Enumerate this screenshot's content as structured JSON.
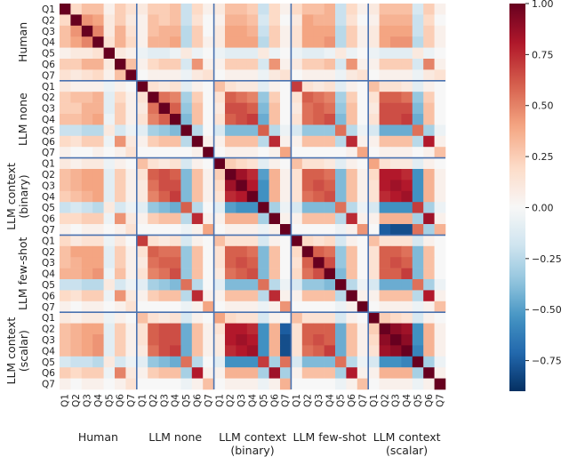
{
  "chart_data": {
    "type": "heatmap",
    "questions": [
      "Q1",
      "Q2",
      "Q3",
      "Q4",
      "Q5",
      "Q6",
      "Q7"
    ],
    "groups": [
      {
        "label_lines": [
          "Human"
        ]
      },
      {
        "label_lines": [
          "LLM none"
        ]
      },
      {
        "label_lines": [
          "LLM context",
          "(binary)"
        ]
      },
      {
        "label_lines": [
          "LLM few-shot"
        ]
      },
      {
        "label_lines": [
          "LLM context",
          "(scalar)"
        ]
      }
    ],
    "colorbar": {
      "vmin": -0.9,
      "vmax": 1.0,
      "ticks": [
        1.0,
        0.75,
        0.5,
        0.25,
        0.0,
        -0.25,
        -0.5,
        -0.75
      ],
      "tick_labels": [
        "1.00",
        "0.75",
        "0.50",
        "0.25",
        "0.00",
        "−0.25",
        "−0.50",
        "−0.75"
      ],
      "colormap": "RdBu_r"
    },
    "grid_line_color": "#4a72b0",
    "matrix": [
      [
        1.0,
        0.2,
        0.3,
        0.3,
        0.05,
        0.25,
        0.15,
        0.1,
        0.25,
        0.25,
        0.3,
        -0.2,
        0.2,
        0.05,
        0.1,
        0.3,
        0.3,
        0.25,
        -0.2,
        0.2,
        0.05,
        0.2,
        0.3,
        0.3,
        0.35,
        -0.2,
        0.2,
        0.05,
        0.1,
        0.3,
        0.3,
        0.3,
        -0.15,
        0.25,
        0.05
      ],
      [
        0.2,
        1.0,
        0.45,
        0.4,
        0.1,
        0.25,
        0.1,
        0.05,
        0.3,
        0.25,
        0.3,
        -0.2,
        0.15,
        0.0,
        0.05,
        0.35,
        0.35,
        0.3,
        -0.15,
        0.2,
        0.0,
        0.1,
        0.4,
        0.35,
        0.35,
        -0.2,
        0.15,
        0.0,
        0.05,
        0.35,
        0.35,
        0.35,
        -0.2,
        0.2,
        0.0
      ],
      [
        0.3,
        0.45,
        1.0,
        0.5,
        0.1,
        0.35,
        0.15,
        0.05,
        0.3,
        0.35,
        0.35,
        -0.25,
        0.25,
        0.0,
        0.1,
        0.4,
        0.4,
        0.35,
        -0.2,
        0.25,
        0.05,
        0.15,
        0.4,
        0.4,
        0.4,
        -0.25,
        0.25,
        0.05,
        0.1,
        0.4,
        0.4,
        0.4,
        -0.2,
        0.25,
        0.05
      ],
      [
        0.3,
        0.4,
        0.5,
        1.0,
        0.15,
        0.35,
        0.2,
        0.05,
        0.35,
        0.35,
        0.4,
        -0.25,
        0.25,
        0.05,
        0.1,
        0.4,
        0.4,
        0.4,
        -0.25,
        0.25,
        0.05,
        0.15,
        0.4,
        0.4,
        0.45,
        -0.25,
        0.25,
        0.05,
        0.1,
        0.4,
        0.45,
        0.45,
        -0.25,
        0.25,
        0.05
      ],
      [
        0.05,
        0.1,
        0.1,
        0.15,
        1.0,
        0.1,
        0.05,
        -0.05,
        -0.1,
        -0.1,
        -0.05,
        0.1,
        -0.05,
        0.0,
        -0.05,
        -0.1,
        -0.1,
        -0.1,
        0.1,
        -0.05,
        0.0,
        -0.05,
        -0.1,
        -0.1,
        -0.05,
        0.1,
        -0.05,
        0.0,
        -0.05,
        -0.1,
        -0.1,
        -0.1,
        0.1,
        -0.05,
        0.0
      ],
      [
        0.25,
        0.25,
        0.35,
        0.35,
        0.1,
        1.0,
        0.3,
        0.05,
        0.2,
        0.25,
        0.25,
        -0.15,
        0.45,
        0.05,
        0.05,
        0.25,
        0.25,
        0.25,
        -0.15,
        0.45,
        0.05,
        0.1,
        0.25,
        0.25,
        0.3,
        -0.15,
        0.45,
        0.05,
        0.05,
        0.25,
        0.25,
        0.25,
        -0.15,
        0.5,
        0.05
      ],
      [
        0.15,
        0.1,
        0.15,
        0.2,
        0.05,
        0.3,
        1.0,
        0.0,
        0.05,
        0.05,
        0.05,
        -0.05,
        0.1,
        0.15,
        0.0,
        0.05,
        0.05,
        0.05,
        -0.05,
        0.1,
        0.15,
        0.0,
        0.05,
        0.05,
        0.05,
        -0.05,
        0.1,
        0.15,
        0.0,
        0.05,
        0.05,
        0.05,
        -0.05,
        0.1,
        0.15
      ],
      [
        0.1,
        0.05,
        0.05,
        0.05,
        -0.05,
        0.05,
        0.0,
        1.0,
        0.15,
        0.1,
        0.15,
        -0.1,
        0.05,
        0.0,
        0.3,
        0.15,
        0.1,
        0.1,
        -0.1,
        0.05,
        0.0,
        0.7,
        0.15,
        0.1,
        0.15,
        -0.1,
        0.05,
        0.0,
        0.3,
        0.15,
        0.15,
        0.1,
        -0.1,
        0.05,
        0.0
      ],
      [
        0.25,
        0.3,
        0.3,
        0.35,
        -0.1,
        0.2,
        0.05,
        0.15,
        1.0,
        0.55,
        0.5,
        -0.3,
        0.25,
        0.0,
        0.15,
        0.6,
        0.55,
        0.5,
        -0.35,
        0.25,
        0.0,
        0.15,
        0.6,
        0.55,
        0.5,
        -0.3,
        0.25,
        0.0,
        0.15,
        0.6,
        0.6,
        0.55,
        -0.35,
        0.25,
        0.0
      ],
      [
        0.25,
        0.25,
        0.35,
        0.35,
        -0.1,
        0.25,
        0.05,
        0.1,
        0.55,
        1.0,
        0.6,
        -0.35,
        0.3,
        0.0,
        0.1,
        0.65,
        0.65,
        0.6,
        -0.4,
        0.3,
        0.0,
        0.1,
        0.55,
        0.6,
        0.55,
        -0.35,
        0.3,
        0.0,
        0.1,
        0.65,
        0.65,
        0.65,
        -0.4,
        0.3,
        0.0
      ],
      [
        0.3,
        0.3,
        0.35,
        0.4,
        -0.05,
        0.25,
        0.05,
        0.15,
        0.5,
        0.6,
        1.0,
        -0.4,
        0.3,
        0.0,
        0.15,
        0.6,
        0.65,
        0.7,
        -0.45,
        0.3,
        0.0,
        0.15,
        0.55,
        0.6,
        0.65,
        -0.4,
        0.3,
        0.0,
        0.15,
        0.65,
        0.65,
        0.7,
        -0.45,
        0.3,
        0.0
      ],
      [
        -0.2,
        -0.2,
        -0.25,
        -0.25,
        0.1,
        -0.15,
        -0.05,
        -0.1,
        -0.3,
        -0.35,
        -0.4,
        1.0,
        -0.25,
        0.0,
        -0.15,
        -0.4,
        -0.4,
        -0.4,
        0.6,
        -0.25,
        -0.05,
        -0.15,
        -0.35,
        -0.35,
        -0.35,
        0.55,
        -0.25,
        -0.05,
        -0.15,
        -0.45,
        -0.45,
        -0.45,
        0.55,
        -0.3,
        -0.05
      ],
      [
        0.2,
        0.15,
        0.25,
        0.25,
        -0.05,
        0.45,
        0.1,
        0.05,
        0.25,
        0.3,
        0.3,
        -0.25,
        1.0,
        0.05,
        0.05,
        0.3,
        0.3,
        0.3,
        -0.25,
        0.75,
        0.05,
        0.05,
        0.3,
        0.3,
        0.3,
        -0.25,
        0.75,
        0.05,
        0.05,
        0.3,
        0.3,
        0.3,
        -0.25,
        0.8,
        0.05
      ],
      [
        0.05,
        0.0,
        0.0,
        0.05,
        0.0,
        0.05,
        0.15,
        0.0,
        0.0,
        0.0,
        0.0,
        0.0,
        0.05,
        1.0,
        0.0,
        0.05,
        0.05,
        0.05,
        0.0,
        0.05,
        0.4,
        0.0,
        0.0,
        0.0,
        0.0,
        0.0,
        0.05,
        0.4,
        0.0,
        0.05,
        0.05,
        0.05,
        0.0,
        0.05,
        0.3
      ],
      [
        0.1,
        0.05,
        0.1,
        0.1,
        -0.05,
        0.05,
        0.0,
        0.3,
        0.15,
        0.1,
        0.15,
        -0.15,
        0.05,
        0.0,
        1.0,
        0.25,
        0.2,
        0.15,
        -0.1,
        0.05,
        0.0,
        0.3,
        0.15,
        0.15,
        0.1,
        -0.1,
        0.05,
        0.0,
        0.4,
        0.15,
        0.1,
        0.1,
        -0.1,
        0.05,
        0.0
      ],
      [
        0.3,
        0.35,
        0.4,
        0.4,
        -0.1,
        0.25,
        0.05,
        0.15,
        0.6,
        0.65,
        0.6,
        -0.4,
        0.3,
        0.05,
        0.25,
        1.0,
        0.85,
        0.75,
        -0.5,
        0.35,
        0.05,
        0.15,
        0.6,
        0.6,
        0.55,
        -0.4,
        0.3,
        0.05,
        0.2,
        0.8,
        0.8,
        0.75,
        -0.55,
        0.35,
        0.05
      ],
      [
        0.3,
        0.35,
        0.4,
        0.4,
        -0.1,
        0.25,
        0.05,
        0.1,
        0.55,
        0.65,
        0.65,
        -0.4,
        0.3,
        0.05,
        0.2,
        0.85,
        1.0,
        0.8,
        -0.55,
        0.35,
        0.05,
        0.15,
        0.6,
        0.65,
        0.6,
        -0.4,
        0.3,
        0.05,
        0.15,
        0.8,
        0.85,
        0.8,
        -0.55,
        0.35,
        0.05
      ],
      [
        0.25,
        0.3,
        0.35,
        0.4,
        -0.1,
        0.25,
        0.05,
        0.1,
        0.5,
        0.6,
        0.7,
        -0.4,
        0.3,
        0.05,
        0.15,
        0.75,
        0.8,
        1.0,
        -0.55,
        0.35,
        0.05,
        0.15,
        0.55,
        0.6,
        0.65,
        -0.4,
        0.3,
        0.05,
        0.15,
        0.75,
        0.8,
        0.85,
        -0.55,
        0.35,
        0.05
      ],
      [
        -0.2,
        -0.15,
        -0.2,
        -0.25,
        0.1,
        -0.15,
        -0.05,
        -0.1,
        -0.35,
        -0.4,
        -0.45,
        0.6,
        -0.25,
        0.0,
        -0.1,
        -0.5,
        -0.55,
        -0.55,
        1.0,
        -0.3,
        -0.05,
        -0.15,
        -0.4,
        -0.4,
        -0.4,
        0.55,
        -0.25,
        -0.05,
        -0.15,
        -0.55,
        -0.55,
        -0.55,
        0.7,
        -0.3,
        -0.05
      ],
      [
        0.2,
        0.2,
        0.25,
        0.25,
        -0.05,
        0.45,
        0.1,
        0.05,
        0.25,
        0.3,
        0.3,
        -0.25,
        0.75,
        0.05,
        0.05,
        0.35,
        0.35,
        0.35,
        -0.3,
        1.0,
        0.05,
        0.05,
        0.3,
        0.3,
        0.3,
        -0.25,
        0.75,
        0.05,
        0.05,
        0.35,
        0.35,
        0.35,
        -0.3,
        0.85,
        0.05
      ],
      [
        0.05,
        0.0,
        0.05,
        0.05,
        0.0,
        0.05,
        0.15,
        0.0,
        0.0,
        0.0,
        0.0,
        -0.05,
        0.05,
        0.4,
        0.0,
        0.05,
        0.05,
        0.05,
        -0.05,
        0.05,
        1.0,
        0.0,
        0.0,
        0.0,
        0.0,
        -0.05,
        0.05,
        0.45,
        0.0,
        -0.75,
        -0.8,
        -0.8,
        0.55,
        -0.3,
        0.35
      ],
      [
        0.2,
        0.1,
        0.15,
        0.15,
        -0.05,
        0.1,
        0.0,
        0.7,
        0.15,
        0.1,
        0.15,
        -0.15,
        0.05,
        0.0,
        0.3,
        0.15,
        0.15,
        0.15,
        -0.15,
        0.05,
        0.0,
        1.0,
        0.2,
        0.15,
        0.2,
        -0.15,
        0.05,
        0.0,
        0.3,
        0.15,
        0.15,
        0.15,
        -0.15,
        0.05,
        0.0
      ],
      [
        0.3,
        0.4,
        0.4,
        0.4,
        -0.1,
        0.25,
        0.05,
        0.15,
        0.6,
        0.55,
        0.55,
        -0.35,
        0.3,
        0.0,
        0.15,
        0.6,
        0.6,
        0.55,
        -0.4,
        0.3,
        0.0,
        0.2,
        1.0,
        0.6,
        0.55,
        -0.35,
        0.3,
        0.0,
        0.15,
        0.6,
        0.6,
        0.55,
        -0.4,
        0.3,
        0.0
      ],
      [
        0.3,
        0.35,
        0.4,
        0.4,
        -0.1,
        0.25,
        0.05,
        0.1,
        0.55,
        0.6,
        0.6,
        -0.35,
        0.3,
        0.0,
        0.15,
        0.6,
        0.65,
        0.6,
        -0.4,
        0.3,
        0.0,
        0.15,
        0.6,
        1.0,
        0.65,
        -0.35,
        0.3,
        0.0,
        0.15,
        0.6,
        0.65,
        0.6,
        -0.4,
        0.3,
        0.0
      ],
      [
        0.35,
        0.35,
        0.4,
        0.45,
        -0.05,
        0.3,
        0.05,
        0.15,
        0.5,
        0.55,
        0.65,
        -0.35,
        0.3,
        0.0,
        0.1,
        0.55,
        0.6,
        0.65,
        -0.4,
        0.3,
        0.0,
        0.2,
        0.55,
        0.65,
        1.0,
        -0.4,
        0.3,
        0.0,
        0.15,
        0.6,
        0.6,
        0.7,
        -0.4,
        0.3,
        0.0
      ],
      [
        -0.2,
        -0.2,
        -0.25,
        -0.25,
        0.1,
        -0.15,
        -0.05,
        -0.1,
        -0.3,
        -0.35,
        -0.4,
        0.55,
        -0.25,
        0.0,
        -0.1,
        -0.4,
        -0.4,
        -0.4,
        0.55,
        -0.25,
        -0.05,
        -0.15,
        -0.35,
        -0.35,
        -0.4,
        1.0,
        -0.25,
        -0.05,
        -0.15,
        -0.45,
        -0.45,
        -0.45,
        0.55,
        -0.3,
        -0.05
      ],
      [
        0.2,
        0.15,
        0.25,
        0.25,
        -0.05,
        0.45,
        0.1,
        0.05,
        0.25,
        0.3,
        0.3,
        -0.25,
        0.75,
        0.05,
        0.05,
        0.3,
        0.3,
        0.3,
        -0.25,
        0.75,
        0.05,
        0.05,
        0.3,
        0.3,
        0.3,
        -0.25,
        1.0,
        0.05,
        0.05,
        0.3,
        0.3,
        0.3,
        -0.25,
        0.8,
        0.05
      ],
      [
        0.05,
        0.0,
        0.05,
        0.05,
        0.0,
        0.05,
        0.15,
        0.0,
        0.0,
        0.0,
        0.0,
        -0.05,
        0.05,
        0.4,
        0.0,
        0.05,
        0.05,
        0.05,
        -0.05,
        0.05,
        0.45,
        0.0,
        0.0,
        0.0,
        0.0,
        -0.05,
        0.05,
        1.0,
        0.0,
        0.05,
        0.05,
        0.05,
        -0.05,
        0.05,
        0.3
      ],
      [
        0.1,
        0.05,
        0.1,
        0.1,
        -0.05,
        0.05,
        0.0,
        0.3,
        0.15,
        0.1,
        0.15,
        -0.15,
        0.05,
        0.0,
        0.4,
        0.2,
        0.15,
        0.15,
        -0.15,
        0.05,
        0.0,
        0.3,
        0.15,
        0.15,
        0.15,
        -0.15,
        0.05,
        0.0,
        1.0,
        0.25,
        0.2,
        0.15,
        -0.15,
        0.05,
        0.0
      ],
      [
        0.3,
        0.35,
        0.4,
        0.4,
        -0.1,
        0.25,
        0.05,
        0.15,
        0.6,
        0.65,
        0.65,
        -0.45,
        0.3,
        0.05,
        0.15,
        0.8,
        0.8,
        0.75,
        -0.55,
        0.35,
        -0.75,
        0.15,
        0.6,
        0.6,
        0.6,
        -0.45,
        0.3,
        0.05,
        0.25,
        1.0,
        0.9,
        0.85,
        -0.55,
        0.35,
        0.05
      ],
      [
        0.3,
        0.35,
        0.4,
        0.45,
        -0.1,
        0.25,
        0.05,
        0.15,
        0.6,
        0.65,
        0.65,
        -0.45,
        0.3,
        0.05,
        0.1,
        0.8,
        0.85,
        0.8,
        -0.55,
        0.35,
        -0.8,
        0.15,
        0.6,
        0.65,
        0.6,
        -0.45,
        0.3,
        0.05,
        0.2,
        0.9,
        1.0,
        0.9,
        -0.55,
        0.35,
        0.05
      ],
      [
        0.3,
        0.35,
        0.4,
        0.45,
        -0.1,
        0.25,
        0.05,
        0.1,
        0.55,
        0.65,
        0.7,
        -0.45,
        0.3,
        0.05,
        0.1,
        0.75,
        0.8,
        0.85,
        -0.55,
        0.35,
        -0.8,
        0.15,
        0.55,
        0.6,
        0.7,
        -0.45,
        0.3,
        0.05,
        0.15,
        0.85,
        0.9,
        1.0,
        -0.6,
        0.35,
        0.05
      ],
      [
        -0.15,
        -0.2,
        -0.2,
        -0.25,
        0.1,
        -0.15,
        -0.05,
        -0.1,
        -0.35,
        -0.4,
        -0.45,
        0.55,
        -0.25,
        0.0,
        -0.1,
        -0.55,
        -0.55,
        -0.55,
        0.7,
        -0.3,
        0.55,
        -0.15,
        -0.4,
        -0.4,
        -0.4,
        0.55,
        -0.25,
        -0.05,
        -0.15,
        -0.55,
        -0.55,
        -0.6,
        1.0,
        -0.3,
        -0.05
      ],
      [
        0.25,
        0.2,
        0.25,
        0.25,
        -0.05,
        0.5,
        0.1,
        0.05,
        0.25,
        0.3,
        0.3,
        -0.3,
        0.8,
        0.05,
        0.05,
        0.35,
        0.35,
        0.35,
        -0.3,
        0.85,
        -0.3,
        0.05,
        0.3,
        0.3,
        0.3,
        -0.3,
        0.8,
        0.05,
        0.05,
        0.35,
        0.35,
        0.35,
        -0.3,
        1.0,
        0.05
      ],
      [
        0.05,
        0.0,
        0.05,
        0.05,
        0.0,
        0.05,
        0.15,
        0.0,
        0.0,
        0.0,
        0.0,
        -0.05,
        0.05,
        0.3,
        0.0,
        0.05,
        0.05,
        0.05,
        -0.05,
        0.05,
        0.35,
        0.0,
        0.0,
        0.0,
        0.0,
        -0.05,
        0.05,
        0.3,
        0.0,
        0.05,
        0.05,
        0.05,
        -0.05,
        0.05,
        1.0
      ]
    ]
  }
}
